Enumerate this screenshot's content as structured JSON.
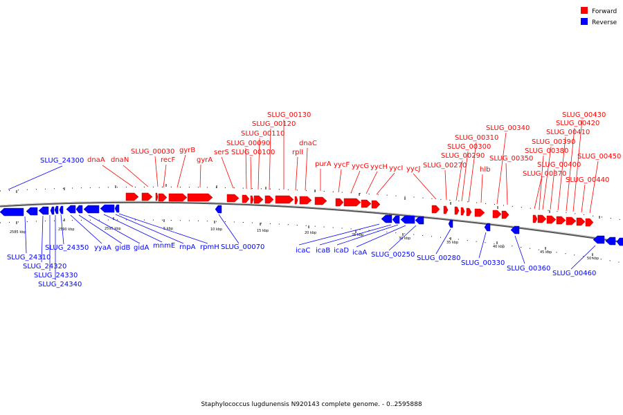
{
  "caption": "Staphylococcus lugdunensis N920143 complete genome. - 0..2595888",
  "legend": [
    {
      "label": "Forward",
      "color": "#ff0000"
    },
    {
      "label": "Reverse",
      "color": "#0000ff"
    }
  ],
  "colors": {
    "forward": "#ff0000",
    "reverse": "#0000ff",
    "backbone": "#888888"
  },
  "ticks": [
    "2585 kbp",
    "2590 kbp",
    "2595 kbp",
    "5 kbp",
    "10 kbp",
    "15 kbp",
    "20 kbp",
    "25 kbp",
    "30 kbp",
    "35 kbp",
    "40 kbp",
    "45 kbp",
    "50 kbp"
  ],
  "forward_labels": [
    "dnaA",
    "dnaN",
    "SLUG_00030",
    "recF",
    "gyrB",
    "gyrA",
    "serS",
    "SLUG_00090",
    "SLUG_00100",
    "SLUG_00110",
    "SLUG_00120",
    "SLUG_00130",
    "rplI",
    "dnaC",
    "purA",
    "yycF",
    "yycG",
    "yycH",
    "yycI",
    "yycJ",
    "SLUG_00270",
    "SLUG_00290",
    "SLUG_00300",
    "SLUG_00310",
    "hlb",
    "SLUG_00340",
    "SLUG_00350",
    "SLUG_00370",
    "SLUG_00380",
    "SLUG_00390",
    "SLUG_00400",
    "SLUG_00410",
    "SLUG_00420",
    "SLUG_00430",
    "SLUG_00440",
    "SLUG_00450"
  ],
  "reverse_labels": [
    "SLUG_24300",
    "SLUG_24310",
    "SLUG_24320",
    "SLUG_24330",
    "SLUG_24340",
    "SLUG_24350",
    "yyaA",
    "gidB",
    "gidA",
    "mnmE",
    "rnpA",
    "rpmH",
    "SLUG_00070",
    "icaC",
    "icaB",
    "icaD",
    "icaA",
    "SLUG_00250",
    "SLUG_00280",
    "SLUG_00330",
    "SLUG_00360",
    "SLUG_00460"
  ]
}
